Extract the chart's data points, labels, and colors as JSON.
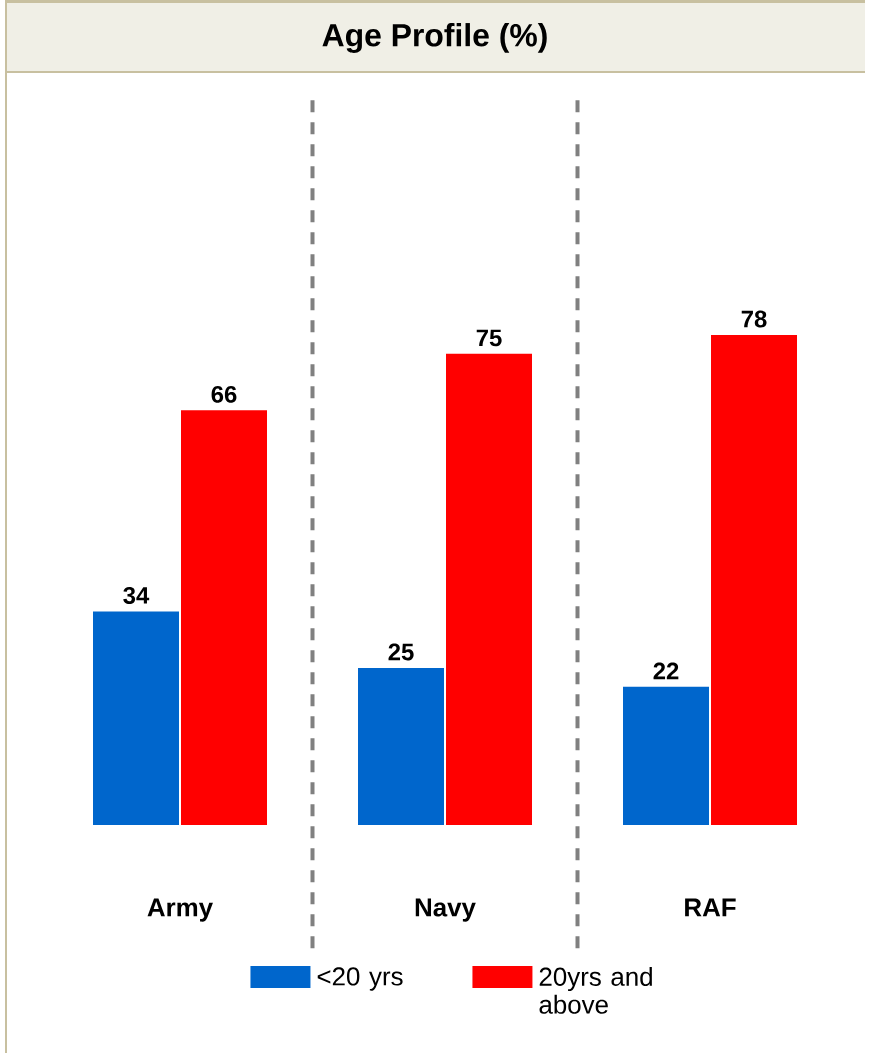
{
  "chart_data": {
    "type": "bar",
    "title": "Age Profile (%)",
    "categories": [
      "Army",
      "Navy",
      "RAF"
    ],
    "series": [
      {
        "name": "<20 yrs",
        "color": "#0066cc",
        "values": [
          34,
          25,
          22
        ]
      },
      {
        "name": "20yrs and above",
        "color": "#ff0000",
        "values": [
          66,
          75,
          78
        ]
      }
    ],
    "data_labels": true,
    "legend": "bottom"
  }
}
